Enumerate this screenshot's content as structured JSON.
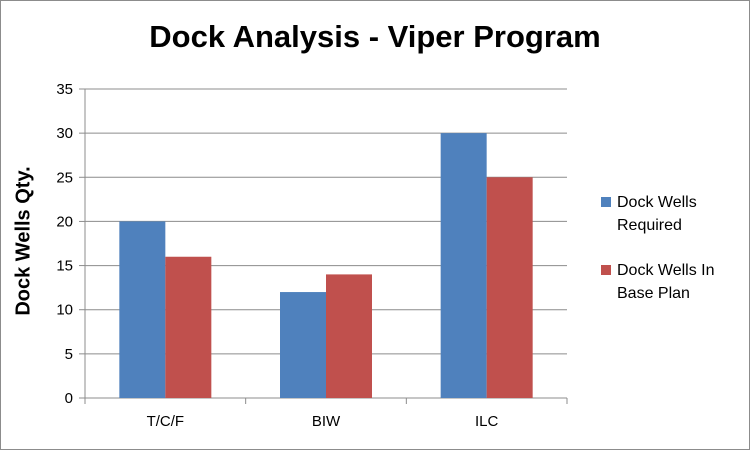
{
  "chart_data": {
    "type": "bar",
    "title": "Dock Analysis - Viper Program",
    "xlabel": "",
    "ylabel": "Dock Wells Qty.",
    "categories": [
      "T/C/F",
      "BIW",
      "ILC"
    ],
    "series": [
      {
        "name": "Dock Wells Required",
        "values": [
          20,
          12,
          30
        ],
        "color": "#4f81bd"
      },
      {
        "name": "Dock Wells In Base Plan",
        "values": [
          16,
          14,
          25
        ],
        "color": "#c0504d"
      }
    ],
    "ylim": [
      0,
      35
    ],
    "yticks": [
      "0",
      "5",
      "10",
      "15",
      "20",
      "25",
      "30",
      "35"
    ],
    "grid": true,
    "legend_position": "right"
  },
  "legend": {
    "items": [
      {
        "label_line1": "Dock Wells",
        "label_line2": "Required",
        "color": "#4f81bd"
      },
      {
        "label_line1": "Dock Wells In",
        "label_line2": "Base Plan",
        "color": "#c0504d"
      }
    ]
  }
}
